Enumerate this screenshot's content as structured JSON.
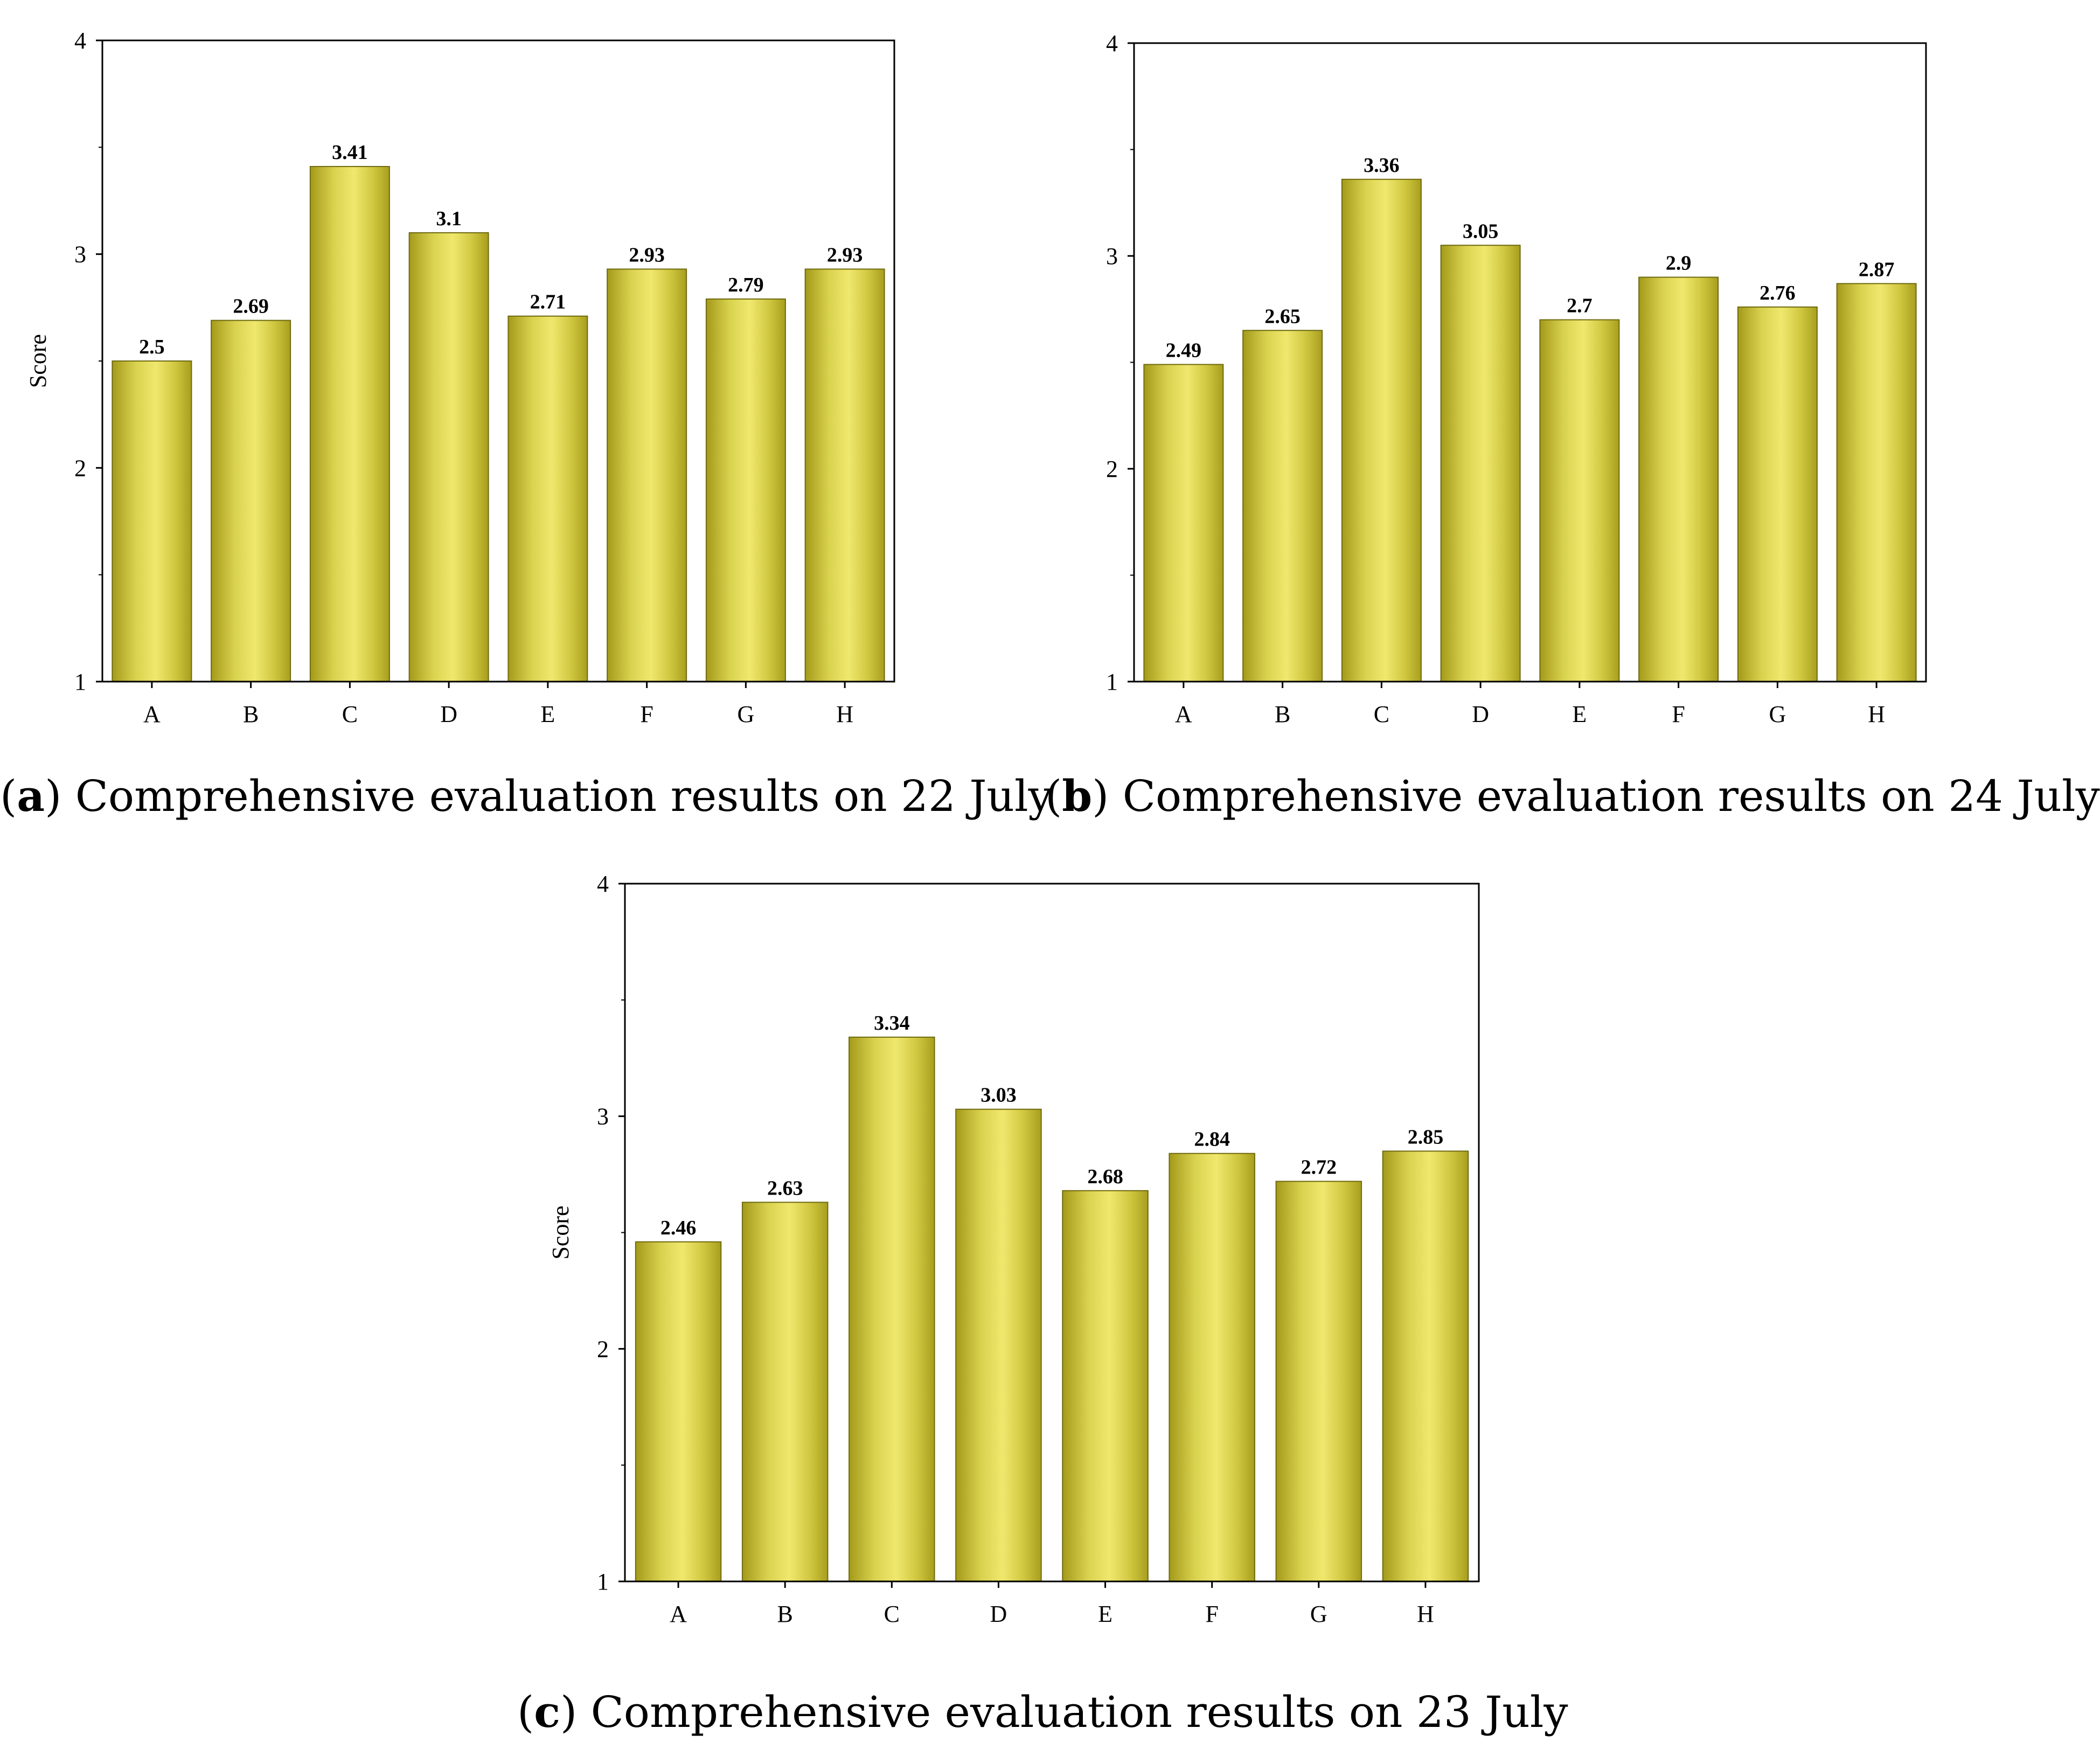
{
  "figure": {
    "bar_gradient": [
      "#a49a1a",
      "#d9d24f",
      "#f0e86e",
      "#cfc63f",
      "#a79e1e"
    ],
    "bar_edge_color": "#6f6a10",
    "axis_color": "#000000"
  },
  "chart_data": [
    {
      "id": "a",
      "type": "bar",
      "caption_label": "a",
      "caption_text": "Comprehensive evaluation results on 22 July",
      "title": "",
      "xlabel": "",
      "ylabel": "Score",
      "show_ylabel": true,
      "categories": [
        "A",
        "B",
        "C",
        "D",
        "E",
        "F",
        "G",
        "H"
      ],
      "values": [
        2.5,
        2.69,
        3.41,
        3.1,
        2.71,
        2.93,
        2.79,
        2.93
      ],
      "value_labels": [
        "2.5",
        "2.69",
        "3.41",
        "3.1",
        "2.71",
        "2.93",
        "2.79",
        "2.93"
      ],
      "ylim": [
        1,
        4
      ],
      "yticks": [
        1,
        2,
        3,
        4
      ],
      "ytick_labels": [
        "1",
        "2",
        "3",
        "4"
      ],
      "grid": false
    },
    {
      "id": "b",
      "type": "bar",
      "caption_label": "b",
      "caption_text": "Comprehensive evaluation results on 24 July",
      "title": "",
      "xlabel": "",
      "ylabel": "",
      "show_ylabel": false,
      "categories": [
        "A",
        "B",
        "C",
        "D",
        "E",
        "F",
        "G",
        "H"
      ],
      "values": [
        2.49,
        2.65,
        3.36,
        3.05,
        2.7,
        2.9,
        2.76,
        2.87
      ],
      "value_labels": [
        "2.49",
        "2.65",
        "3.36",
        "3.05",
        "2.7",
        "2.9",
        "2.76",
        "2.87"
      ],
      "ylim": [
        1,
        4
      ],
      "yticks": [
        1,
        2,
        3,
        4
      ],
      "ytick_labels": [
        "1",
        "2",
        "3",
        "4"
      ],
      "grid": false
    },
    {
      "id": "c",
      "type": "bar",
      "caption_label": "c",
      "caption_text": "Comprehensive evaluation results on 23 July",
      "title": "",
      "xlabel": "",
      "ylabel": "Score",
      "show_ylabel": true,
      "categories": [
        "A",
        "B",
        "C",
        "D",
        "E",
        "F",
        "G",
        "H"
      ],
      "values": [
        2.46,
        2.63,
        3.34,
        3.03,
        2.68,
        2.84,
        2.72,
        2.85
      ],
      "value_labels": [
        "2.46",
        "2.63",
        "3.34",
        "3.03",
        "2.68",
        "2.84",
        "2.72",
        "2.85"
      ],
      "ylim": [
        1,
        4
      ],
      "yticks": [
        1,
        2,
        3,
        4
      ],
      "ytick_labels": [
        "1",
        "2",
        "3",
        "4"
      ],
      "grid": false
    }
  ]
}
